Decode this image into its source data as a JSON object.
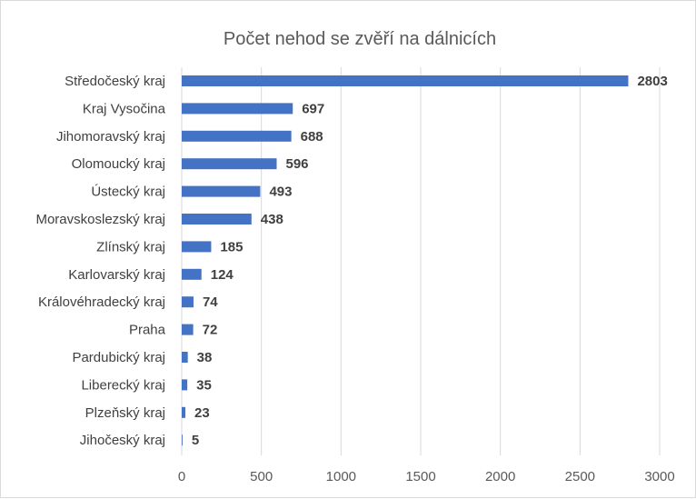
{
  "chart_data": {
    "type": "bar",
    "orientation": "horizontal",
    "title": "Počet nehod se zvěří na dálnicích",
    "xlabel": "",
    "ylabel": "",
    "categories": [
      "Středočeský kraj",
      "Kraj Vysočina",
      "Jihomoravský kraj",
      "Olomoucký kraj",
      "Ústecký kraj",
      "Moravskoslezský kraj",
      "Zlínský kraj",
      "Karlovarský kraj",
      "Královéhradecký kraj",
      "Praha",
      "Pardubický kraj",
      "Liberecký kraj",
      "Plzeňský kraj",
      "Jihočeský kraj"
    ],
    "values": [
      2803,
      697,
      688,
      596,
      493,
      438,
      185,
      124,
      74,
      72,
      38,
      35,
      23,
      5
    ],
    "xlim": [
      0,
      3000
    ],
    "ticks": [
      0,
      500,
      1000,
      1500,
      2000,
      2500,
      3000
    ],
    "grid": true,
    "legend": "none",
    "bar_color": "#4472c4",
    "grid_color": "#d9d9d9"
  }
}
